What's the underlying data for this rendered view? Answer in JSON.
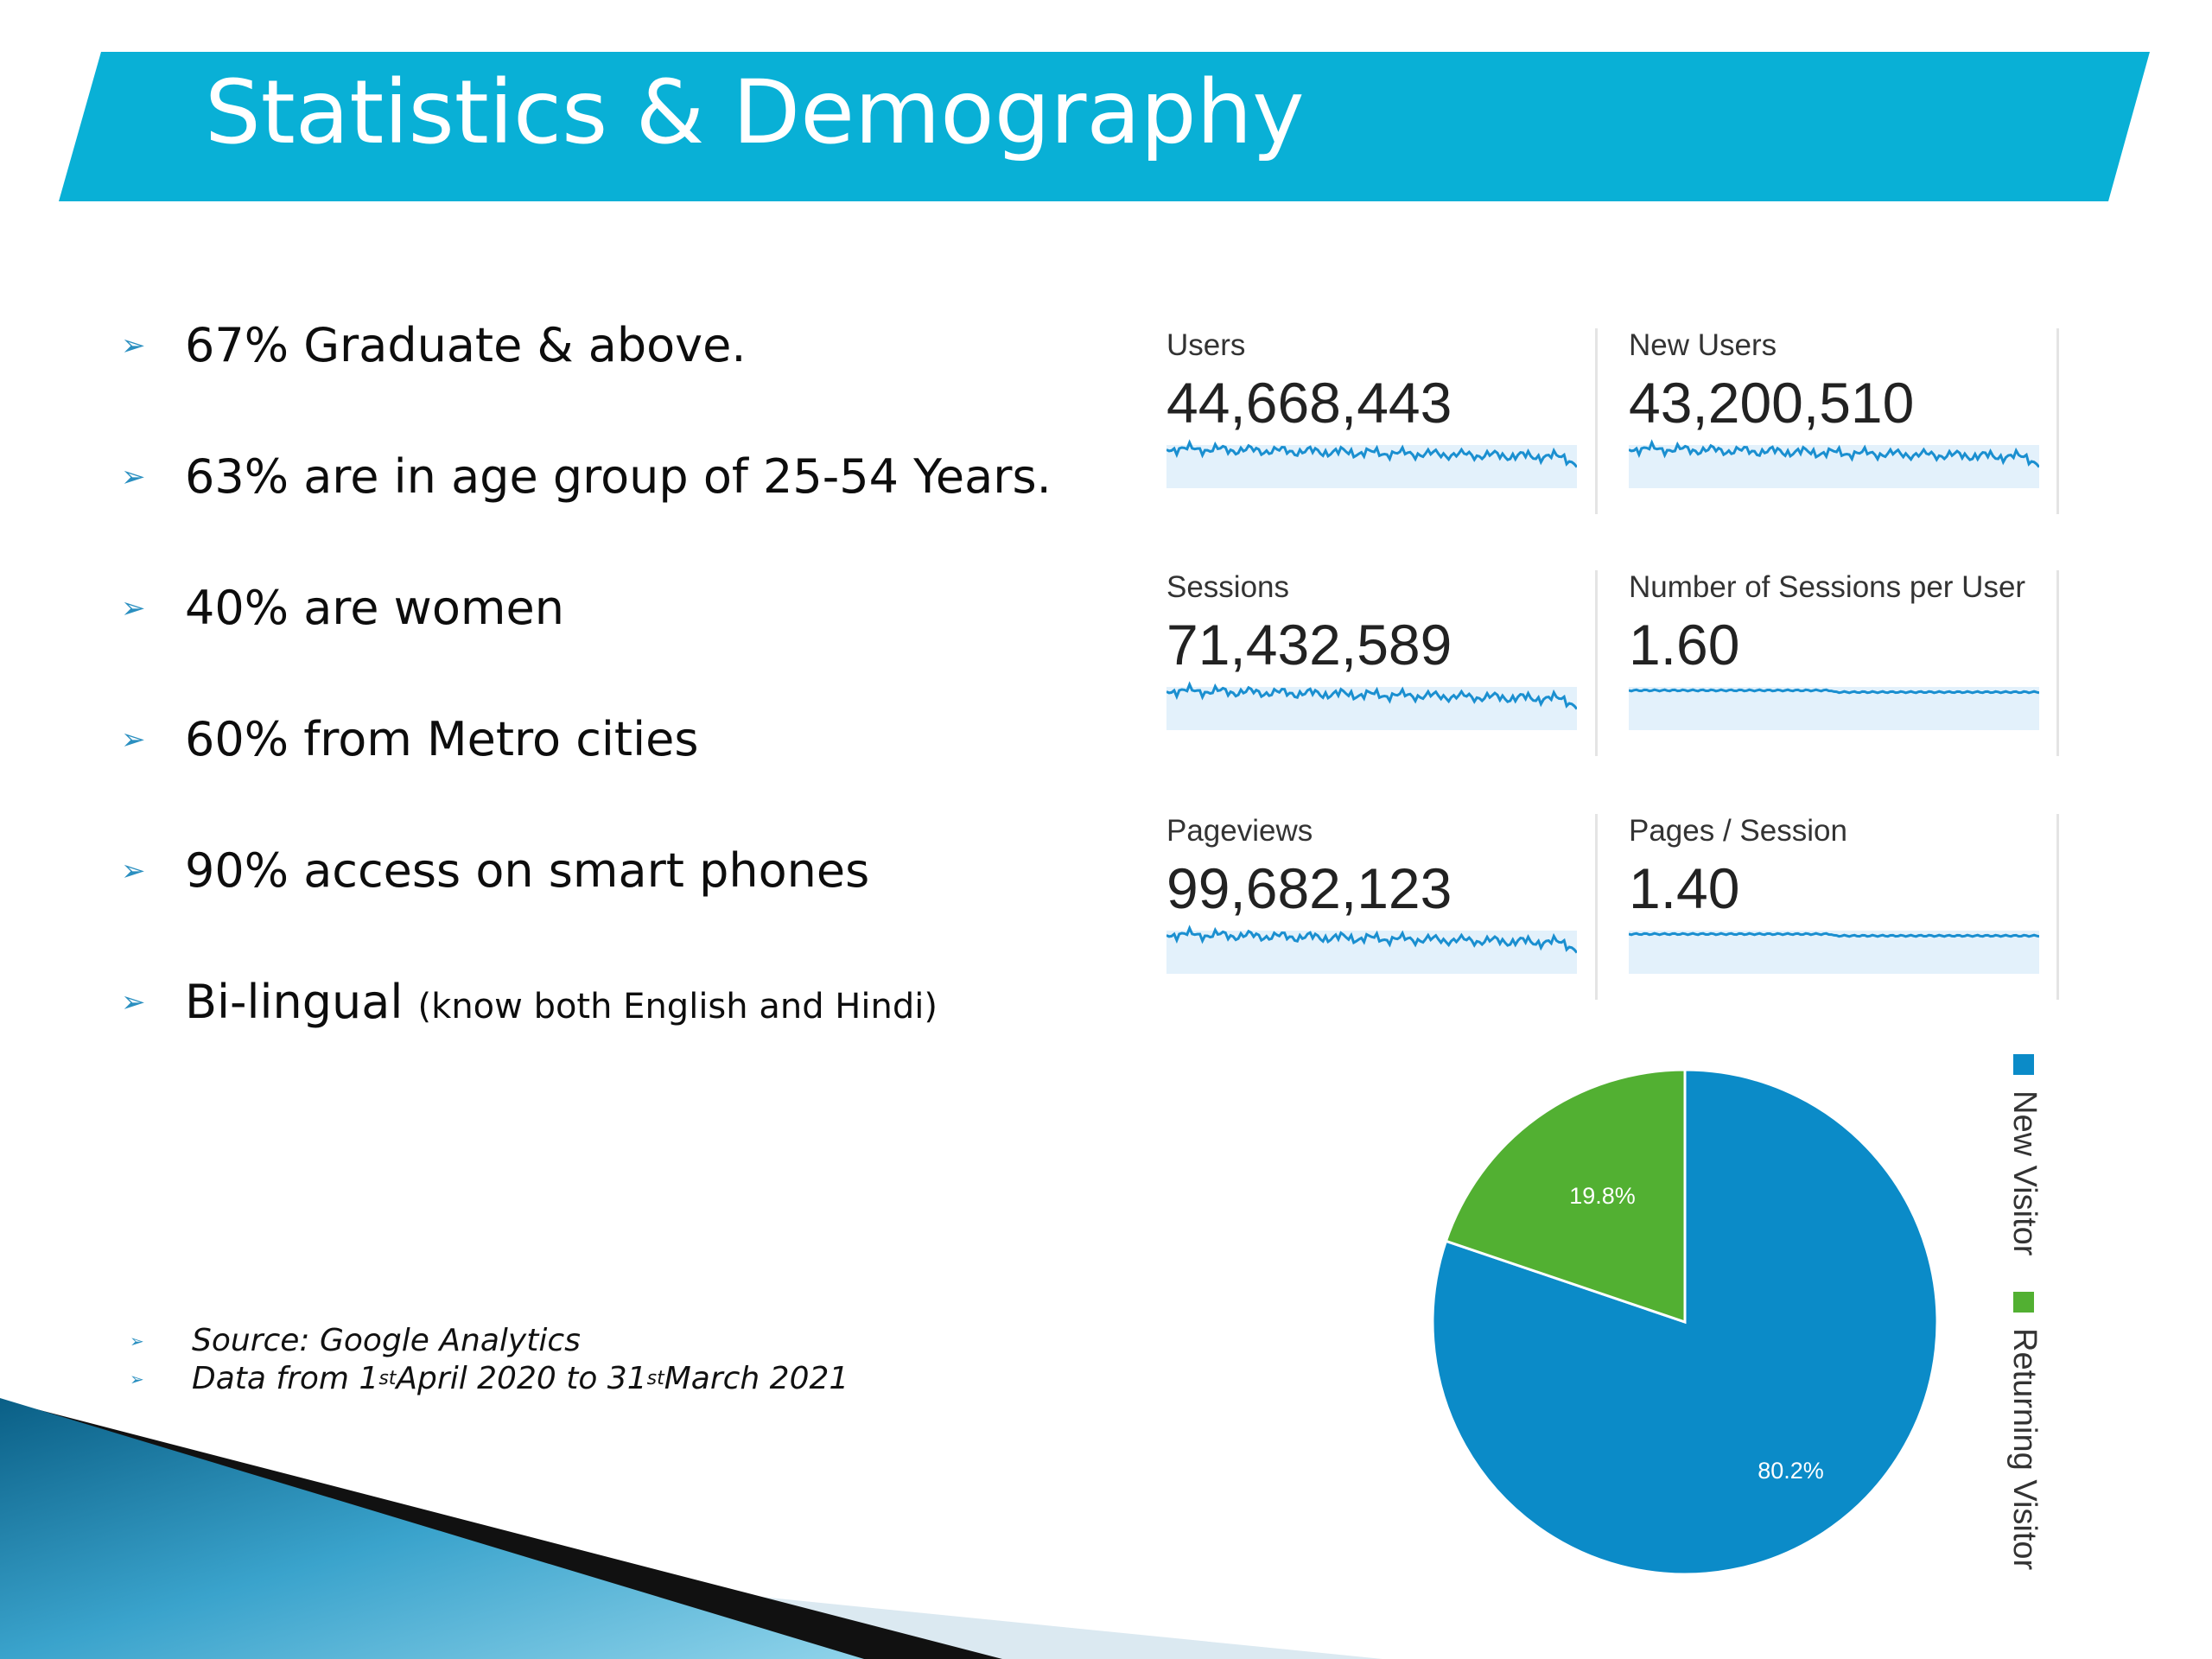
{
  "title": "Statistics & Demography",
  "colors": {
    "banner": "#09b0d6",
    "new_visitor": "#0b8bc8",
    "returning_visitor": "#52b032",
    "sparkline": "#1a8fd0",
    "spark_fill": "#e3f1fb"
  },
  "bullets": [
    {
      "text": "67% Graduate & above.",
      "small": ""
    },
    {
      "text": "63% are in age group of 25-54 Years.",
      "small": ""
    },
    {
      "text": "40% are women",
      "small": ""
    },
    {
      "text": "60% from Metro cities",
      "small": ""
    },
    {
      "text": "90% access on smart phones",
      "small": ""
    },
    {
      "text": "Bi-lingual",
      "small": "(know both English and Hindi)"
    }
  ],
  "source": {
    "line1": "Source: Google Analytics",
    "line2_a": "Data from 1",
    "line2_sup1": "st",
    "line2_b": " April 2020 to 31",
    "line2_sup2": "st",
    "line2_c": " March 2021"
  },
  "metrics": [
    {
      "label": "Users",
      "value": "44,668,443",
      "trend": "wavy"
    },
    {
      "label": "New Users",
      "value": "43,200,510",
      "trend": "wavy"
    },
    {
      "label": "Sessions",
      "value": "71,432,589",
      "trend": "wavy"
    },
    {
      "label": "Number of Sessions per User",
      "value": "1.60",
      "trend": "flat"
    },
    {
      "label": "Pageviews",
      "value": "99,682,123",
      "trend": "wavy"
    },
    {
      "label": "Pages / Session",
      "value": "1.40",
      "trend": "flat"
    }
  ],
  "chart_data": {
    "type": "pie",
    "categories": [
      "New Visitor",
      "Returning Visitor"
    ],
    "values": [
      80.2,
      19.8
    ],
    "labels": [
      "80.2%",
      "19.8%"
    ],
    "colors": [
      "#0b8bc8",
      "#52b032"
    ],
    "legend_placement": "right (vertical)"
  }
}
